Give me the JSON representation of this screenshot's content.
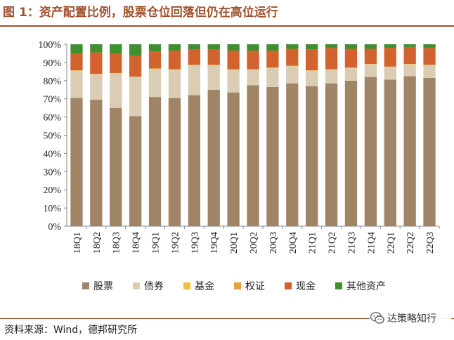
{
  "title": "图 1：资产配置比例，股票仓位回落但仍在高位运行",
  "source": "资料来源：Wind，德邦研究所",
  "watermark": {
    "text": "达策略知行",
    "icon": "wechat-icon"
  },
  "chart_data": {
    "type": "bar",
    "stacked": true,
    "title": "",
    "xlabel": "",
    "ylabel": "",
    "ylim": [
      0,
      100
    ],
    "yticks": [
      "0%",
      "10%",
      "20%",
      "30%",
      "40%",
      "50%",
      "60%",
      "70%",
      "80%",
      "90%",
      "100%"
    ],
    "grid": false,
    "legend_position": "bottom",
    "categories": [
      "18Q1",
      "18Q2",
      "18Q3",
      "18Q4",
      "19Q1",
      "19Q2",
      "19Q3",
      "19Q4",
      "20Q1",
      "20Q2",
      "20Q3",
      "20Q4",
      "21Q1",
      "21Q2",
      "21Q3",
      "21Q4",
      "22Q1",
      "22Q2",
      "22Q3"
    ],
    "series": [
      {
        "name": "股票",
        "color": "#a08466",
        "values": [
          70.5,
          69.5,
          65,
          60.5,
          71,
          70.5,
          72,
          75,
          73.5,
          77.5,
          76.5,
          78.5,
          77,
          78.5,
          80,
          82,
          80.5,
          82.5,
          81.5
        ]
      },
      {
        "name": "债券",
        "color": "#dbcdb4",
        "values": [
          15,
          14,
          19,
          21.5,
          15.5,
          15.5,
          16.5,
          13.5,
          12.5,
          8.5,
          10.5,
          9.5,
          8.5,
          7.5,
          7,
          7,
          7,
          6.5,
          7
        ]
      },
      {
        "name": "基金",
        "color": "#f2c037",
        "values": [
          0.2,
          0.2,
          0.2,
          0.2,
          0.2,
          0.2,
          0.2,
          0.2,
          0.2,
          0.2,
          0.2,
          0.2,
          0.2,
          0.2,
          0.2,
          0.2,
          0.2,
          0.2,
          0.2
        ]
      },
      {
        "name": "权证",
        "color": "#e8a03a",
        "values": [
          0,
          0,
          0,
          0,
          0,
          0,
          0,
          0,
          0,
          0,
          0,
          0,
          0,
          0,
          0,
          0,
          0,
          0,
          0
        ]
      },
      {
        "name": "现金",
        "color": "#d2622e",
        "values": [
          9.3,
          11.8,
          10.8,
          11.3,
          9.3,
          10.3,
          8.3,
          8.3,
          10.3,
          10.3,
          9.3,
          9.3,
          11.3,
          11.8,
          10.3,
          8.3,
          10.3,
          9.3,
          9.3
        ]
      },
      {
        "name": "其他资产",
        "color": "#3f8f2f",
        "values": [
          5.0,
          4.5,
          5.0,
          6.5,
          4.0,
          3.5,
          3.0,
          3.0,
          3.5,
          3.5,
          3.5,
          2.5,
          3.0,
          2.0,
          2.5,
          2.5,
          2.0,
          1.5,
          2.0
        ]
      }
    ]
  }
}
